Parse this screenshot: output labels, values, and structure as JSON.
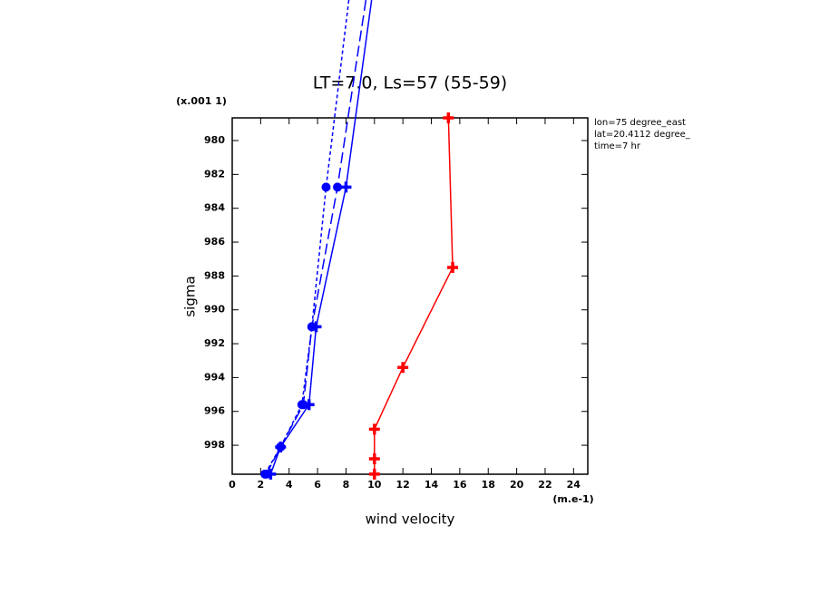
{
  "chart_data": {
    "type": "line",
    "title": "LT=7.0, Ls=57 (55-59)",
    "x_label": "wind velocity",
    "y_label": "sigma",
    "x_units": "(m.e-1)",
    "y_scale_label": "(x.001 1)",
    "annotations": [
      "lon=75 degree_east",
      "lat=20.4112 degree_",
      "time=7 hr"
    ],
    "xlim": [
      0,
      25
    ],
    "xticks": [
      0,
      2,
      4,
      6,
      8,
      10,
      12,
      14,
      16,
      18,
      20,
      22,
      24
    ],
    "ylim": [
      999.71,
      978.66
    ],
    "yticks": [
      980,
      982,
      984,
      986,
      988,
      990,
      992,
      994,
      996,
      998
    ],
    "series": [
      {
        "color": "#ff0000",
        "dash": "solid",
        "marker": "plus",
        "x": [
          15.2,
          15.5,
          12.0,
          10.0,
          10.0,
          10.0
        ],
        "y": [
          978.66,
          987.5,
          993.4,
          997.05,
          998.8,
          999.7
        ]
      },
      {
        "color": "#0000ff",
        "dash": "solid",
        "marker": "plus",
        "x": [
          9.8,
          8.0,
          5.9,
          5.4,
          3.4,
          2.7
        ],
        "y": [
          971.7,
          982.75,
          991.0,
          995.6,
          998.1,
          999.7
        ]
      },
      {
        "color": "#0000ff",
        "dash": "long",
        "marker": "circle",
        "x": [
          9.4,
          7.4,
          5.6,
          5.0,
          3.4,
          2.4
        ],
        "y": [
          971.7,
          982.75,
          991.0,
          995.6,
          998.1,
          999.7
        ]
      },
      {
        "color": "#0000ff",
        "dash": "short",
        "marker": "circle",
        "x": [
          8.2,
          6.6,
          5.6,
          4.9,
          3.4,
          2.3
        ],
        "y": [
          971.7,
          982.75,
          991.0,
          995.6,
          998.1,
          999.7
        ]
      }
    ]
  }
}
